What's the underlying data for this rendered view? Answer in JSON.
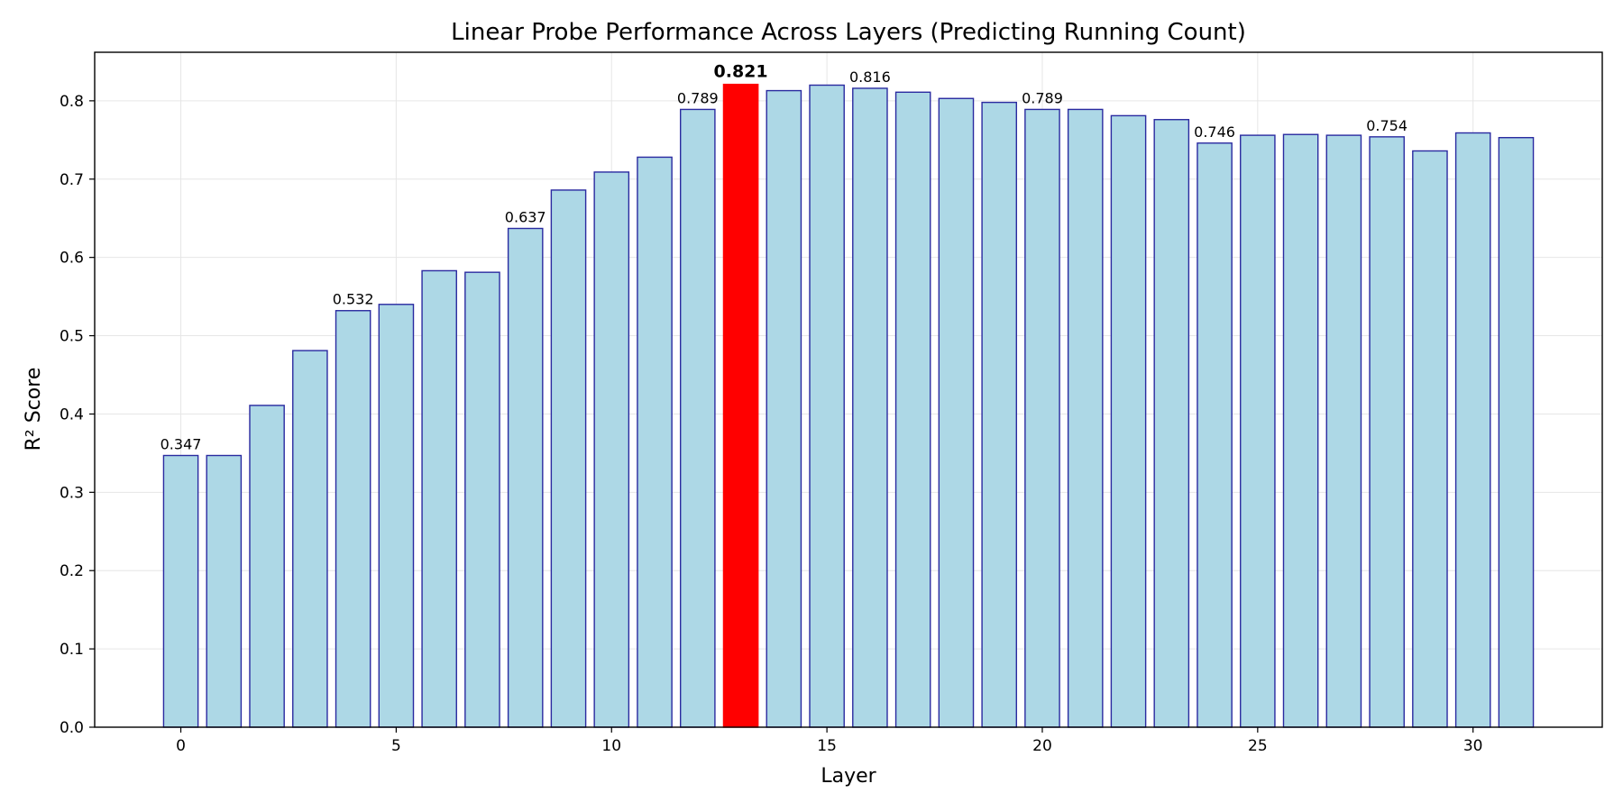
{
  "chart_data": {
    "type": "bar",
    "title": "Linear Probe Performance Across Layers (Predicting Running Count)",
    "xlabel": "Layer",
    "ylabel": "R² Score",
    "x": [
      0,
      1,
      2,
      3,
      4,
      5,
      6,
      7,
      8,
      9,
      10,
      11,
      12,
      13,
      14,
      15,
      16,
      17,
      18,
      19,
      20,
      21,
      22,
      23,
      24,
      25,
      26,
      27,
      28,
      29,
      30,
      31
    ],
    "values": [
      0.347,
      0.347,
      0.411,
      0.481,
      0.532,
      0.54,
      0.583,
      0.581,
      0.637,
      0.686,
      0.709,
      0.728,
      0.789,
      0.821,
      0.813,
      0.82,
      0.816,
      0.811,
      0.803,
      0.798,
      0.789,
      0.789,
      0.781,
      0.776,
      0.746,
      0.756,
      0.757,
      0.756,
      0.754,
      0.736,
      0.759,
      0.753
    ],
    "highlight_index": 13,
    "labeled_bars": [
      {
        "index": 0,
        "text": "0.347"
      },
      {
        "index": 4,
        "text": "0.532"
      },
      {
        "index": 8,
        "text": "0.637"
      },
      {
        "index": 12,
        "text": "0.789"
      },
      {
        "index": 13,
        "text": "0.821",
        "bold": true
      },
      {
        "index": 16,
        "text": "0.816"
      },
      {
        "index": 20,
        "text": "0.789"
      },
      {
        "index": 24,
        "text": "0.746"
      },
      {
        "index": 28,
        "text": "0.754"
      }
    ],
    "xlim": [
      -2,
      33
    ],
    "ylim": [
      0,
      0.862
    ],
    "xticks": [
      0,
      5,
      10,
      15,
      20,
      25,
      30
    ],
    "yticks": [
      0.0,
      0.1,
      0.2,
      0.3,
      0.4,
      0.5,
      0.6,
      0.7,
      0.8
    ],
    "grid": true,
    "colors": {
      "bar_fill": "#add8e6",
      "bar_edge": "#2a2aa0",
      "highlight_fill": "#ff0000",
      "grid": "#e6e6e6"
    }
  }
}
